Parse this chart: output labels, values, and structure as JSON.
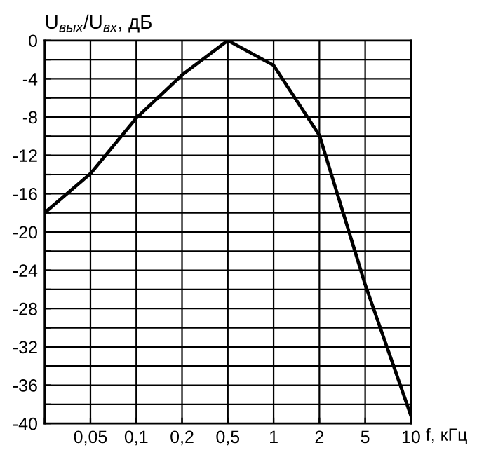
{
  "chart_data": {
    "type": "line",
    "xlabel": "f, кГц",
    "ylabel": "U$_{вых}$/U$_{вх}$, дБ",
    "categories": [
      null,
      "0,05",
      "0,1",
      "0,2",
      "0,5",
      "1",
      "2",
      "5",
      "10"
    ],
    "series": [
      {
        "color": "#000000",
        "values": [
          -18,
          -13.9,
          -8.1,
          -3.6,
          0,
          -2.6,
          -9.9,
          -25.5,
          -39.2
        ]
      }
    ],
    "ylim": [
      -40,
      0
    ],
    "yticks": [
      -40,
      {
        "value": -38,
        "label": null
      },
      -36,
      {
        "value": -34,
        "label": null
      },
      -32,
      {
        "value": -30,
        "label": null
      },
      -28,
      {
        "value": -26,
        "label": null
      },
      -24,
      {
        "value": -22,
        "label": null
      },
      -20,
      {
        "value": -18,
        "label": null
      },
      -16,
      {
        "value": -14,
        "label": null
      },
      -12,
      {
        "value": -10,
        "label": null
      },
      -8,
      {
        "value": -6,
        "label": null
      },
      -4,
      {
        "value": -2,
        "label": null
      },
      0
    ],
    "grid": true,
    "marker": "none",
    "line_style": "solid",
    "legend": false
  }
}
